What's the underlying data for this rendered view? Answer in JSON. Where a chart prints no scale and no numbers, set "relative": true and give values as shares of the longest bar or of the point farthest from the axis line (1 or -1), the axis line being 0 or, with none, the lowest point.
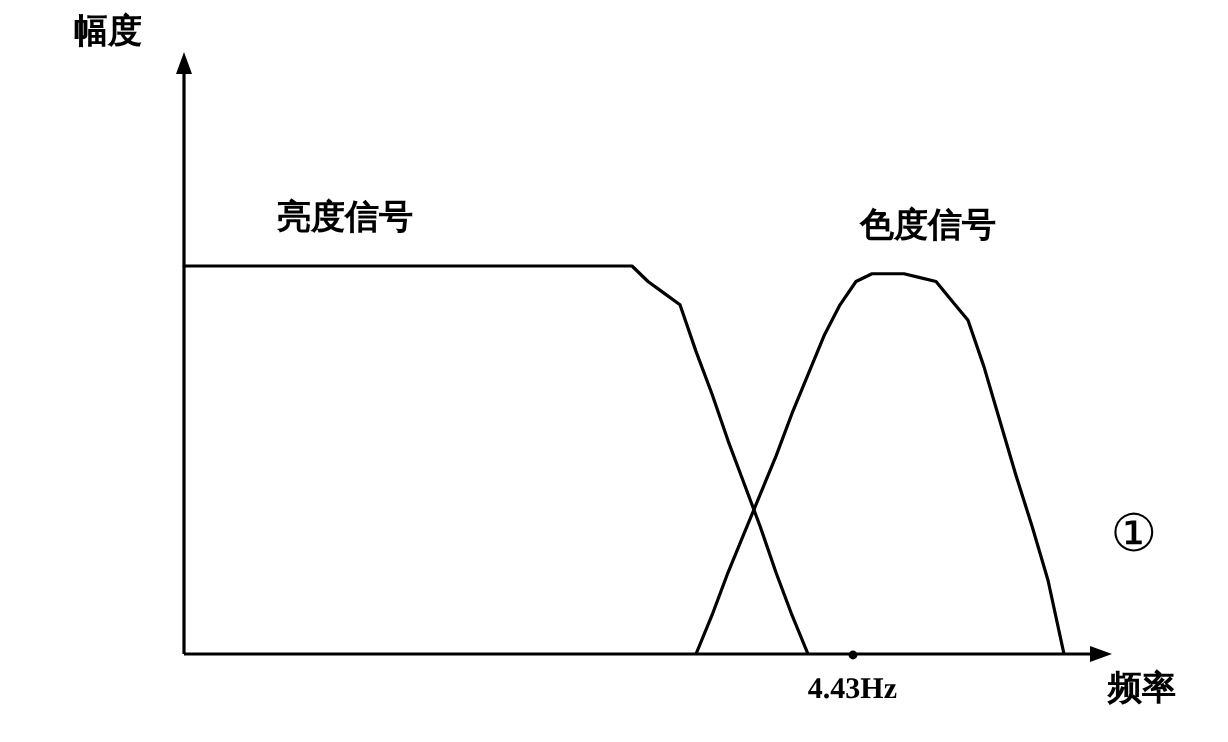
{
  "chart_data": {
    "type": "line",
    "relative": true,
    "xlabel": "频率",
    "legend": false,
    "marker": "none",
    "line_style": "solid",
    "annotations": [
      "幅度",
      "4.43Hz",
      "①"
    ],
    "categories": [
      null,
      null,
      null,
      null,
      null,
      null,
      null,
      null,
      null,
      null,
      null,
      null,
      null,
      null,
      null,
      null,
      null,
      null,
      null,
      null,
      null,
      null,
      null,
      null,
      null,
      null,
      null,
      null,
      null,
      null,
      null,
      null,
      null,
      null,
      null,
      null,
      null,
      null,
      null,
      null,
      null,
      null,
      null,
      null,
      null,
      null,
      null,
      null,
      null,
      null,
      null,
      null,
      null,
      null,
      null,
      null,
      null
    ],
    "series": [
      {
        "name": "亮度信号",
        "color": "#000000",
        "values": [
          1,
          1,
          1,
          1,
          1,
          1,
          1,
          1,
          1,
          1,
          1,
          1,
          1,
          1,
          1,
          1,
          1,
          1,
          1,
          1,
          1,
          1,
          1,
          1,
          1,
          1,
          1,
          1,
          1,
          0.96,
          0.93,
          0.9,
          0.78,
          0.67,
          0.55,
          0.44,
          0.33,
          0.21,
          0.1,
          0,
          null,
          null,
          null,
          null,
          null,
          null,
          null,
          null,
          null,
          null,
          null,
          null,
          null,
          null,
          null,
          null,
          null
        ]
      },
      {
        "name": "色度信号",
        "color": "#000000",
        "values": [
          null,
          null,
          null,
          null,
          null,
          null,
          null,
          null,
          null,
          null,
          null,
          null,
          null,
          null,
          null,
          null,
          null,
          null,
          null,
          null,
          null,
          null,
          null,
          null,
          null,
          null,
          null,
          null,
          null,
          null,
          null,
          null,
          0,
          0.1,
          0.21,
          0.31,
          0.41,
          0.51,
          0.62,
          0.72,
          0.82,
          0.9,
          0.96,
          0.98,
          0.98,
          0.98,
          0.97,
          0.96,
          0.91,
          0.86,
          0.74,
          0.6,
          0.46,
          0.33,
          0.19,
          0,
          null
        ]
      }
    ]
  }
}
